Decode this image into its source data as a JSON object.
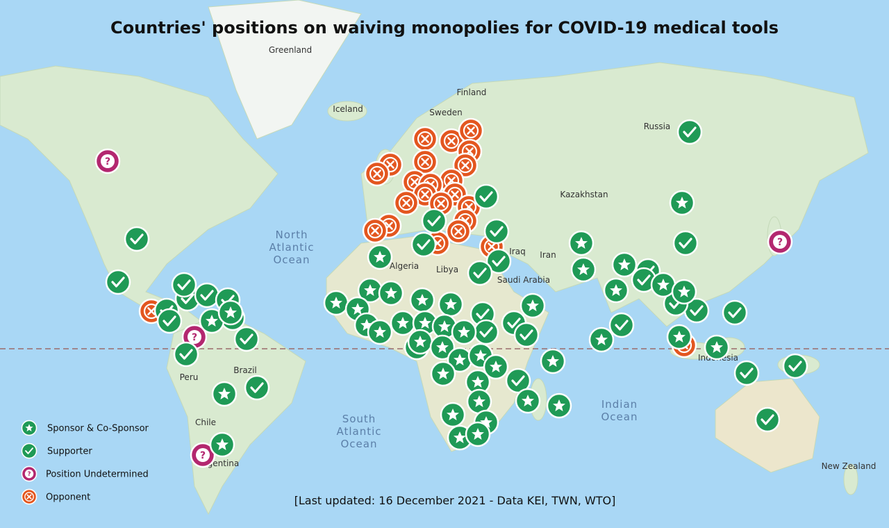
{
  "title": "Countries' positions on waiving monopolies for COVID-19 medical tools",
  "legend": [
    {
      "label": "Sponsor & Co-Sponsor"
    },
    {
      "label": "Supporter"
    },
    {
      "label": "Position Undetermined"
    },
    {
      "label": "Opponent"
    }
  ],
  "footnote": "[Last updated: 16 December 2021 - Data KEI, TWN, WTO]",
  "place_labels": [
    "Greenland",
    "Iceland",
    "Finland",
    "Sweden",
    "Russia",
    "Kazakhstan",
    "Iraq",
    "Iran",
    "Libya",
    "Algeria",
    "Saudi Arabia",
    "Brazil",
    "Peru",
    "Chile",
    "Argentina",
    "Indonesia",
    "New Zealand"
  ],
  "ocean_labels": [
    [
      "North",
      "Atlantic",
      "Ocean"
    ],
    [
      "South",
      "Atlantic",
      "Ocean"
    ],
    [
      "Indian",
      "Ocean"
    ]
  ]
}
